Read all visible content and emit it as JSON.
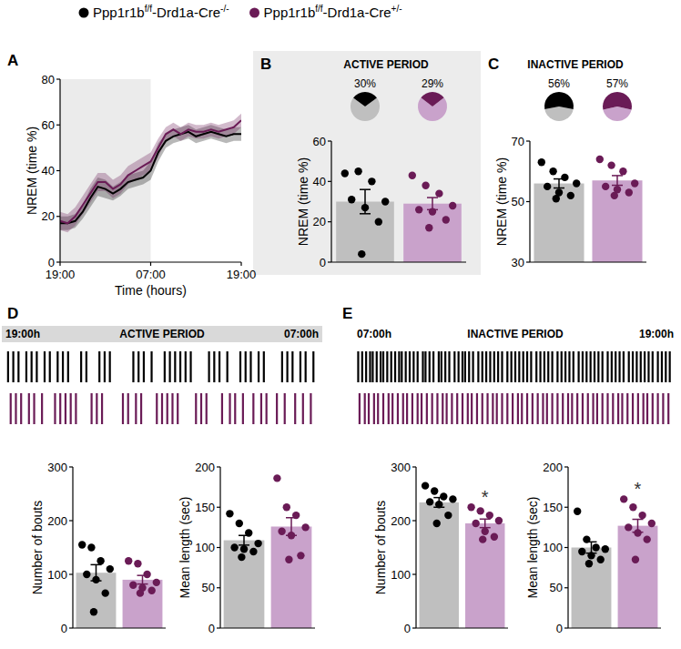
{
  "figure_legend": {
    "entries": [
      {
        "parts": [
          "Ppp1r1b",
          "f/f",
          "-Drd1a-Cre",
          "-/-"
        ],
        "color": "#000000"
      },
      {
        "parts": [
          "Ppp1r1b",
          "f/f",
          "-Drd1a-Cre",
          "+/-"
        ],
        "color": "#6a1b56"
      }
    ]
  },
  "chart_data": [
    {
      "type": "line",
      "panel": "A",
      "ylabel": "NREM (time %)",
      "xlabel": "Time (hours)",
      "x": [
        0,
        1,
        2,
        3,
        4,
        5,
        6,
        7,
        8,
        9,
        10,
        11,
        12,
        13,
        14,
        15,
        16,
        17,
        18,
        19,
        20,
        21,
        22,
        23,
        24
      ],
      "xlim": [
        0,
        24
      ],
      "xticks": [
        {
          "value": 0,
          "label": "19:00"
        },
        {
          "value": 12,
          "label": "07:00"
        },
        {
          "value": 24,
          "label": "19:00"
        }
      ],
      "ylim": [
        0,
        80
      ],
      "yticks": [
        0,
        20,
        40,
        60,
        80
      ],
      "shaded_x": [
        0,
        12
      ],
      "series": [
        {
          "color": "#000000",
          "values": [
            17,
            17,
            18,
            22,
            28,
            33,
            32,
            30,
            32,
            35,
            36,
            37,
            40,
            48,
            53,
            55,
            56,
            57,
            55,
            56,
            57,
            56,
            55,
            56,
            56
          ],
          "errors": [
            3,
            3,
            3,
            3,
            4,
            4,
            4,
            3,
            3,
            3,
            3,
            3,
            4,
            4,
            3,
            3,
            3,
            3,
            3,
            3,
            3,
            3,
            3,
            3,
            3
          ]
        },
        {
          "color": "#6a1b56",
          "values": [
            18,
            17,
            20,
            25,
            30,
            35,
            35,
            32,
            34,
            38,
            40,
            42,
            44,
            50,
            56,
            58,
            56,
            58,
            57,
            57,
            58,
            57,
            58,
            59,
            62
          ],
          "errors": [
            4,
            4,
            4,
            4,
            4,
            4,
            4,
            4,
            4,
            4,
            4,
            4,
            4,
            4,
            3,
            3,
            3,
            3,
            3,
            3,
            3,
            3,
            3,
            3,
            3
          ]
        }
      ]
    },
    {
      "type": "bar",
      "panel": "B",
      "title": "ACTIVE PERIOD",
      "ylabel": "NREM (time %)",
      "categories": [
        null,
        null
      ],
      "ylim": [
        0,
        60
      ],
      "yticks": [
        0,
        20,
        40,
        60
      ],
      "colors": [
        "#bfbfbf",
        "#c9a2cb"
      ],
      "values": [
        30,
        29
      ],
      "errors": [
        6,
        3
      ],
      "points": [
        {
          "color": "#000000",
          "values": [
            44,
            45,
            40,
            30,
            31,
            27,
            20,
            4
          ]
        },
        {
          "color": "#6a1b56",
          "values": [
            43,
            38,
            34,
            28,
            26,
            25,
            21,
            17
          ]
        }
      ],
      "pies": {
        "values": [
          30,
          29
        ],
        "value_labels": [
          "30%",
          "29%"
        ]
      }
    },
    {
      "type": "bar",
      "panel": "C",
      "title": "INACTIVE PERIOD",
      "ylabel": "NREM (time %)",
      "categories": [
        null,
        null
      ],
      "ylim": [
        30,
        70
      ],
      "yticks": [
        30,
        50,
        70
      ],
      "colors": [
        "#bfbfbf",
        "#c9a2cb"
      ],
      "values": [
        56,
        57
      ],
      "errors": [
        1.5,
        1.6
      ],
      "points": [
        {
          "color": "#000000",
          "values": [
            63,
            60,
            58,
            56,
            55,
            53,
            52,
            51
          ]
        },
        {
          "color": "#6a1b56",
          "values": [
            64,
            62,
            60,
            56,
            55,
            54,
            53,
            52
          ]
        }
      ],
      "pies": {
        "values": [
          56,
          57
        ],
        "value_labels": [
          "56%",
          "57%"
        ]
      }
    },
    {
      "type": "raster",
      "panel": "D",
      "title": "ACTIVE PERIOD",
      "start_label": "19:00h",
      "end_label": "07:00h",
      "xlim": [
        0,
        12
      ],
      "series": [
        {
          "color": "#000000",
          "values": [
            0.1,
            0.3,
            0.5,
            0.8,
            1.0,
            1.2,
            1.5,
            1.7,
            2.0,
            2.2,
            2.4,
            2.9,
            3.1,
            3.6,
            3.8,
            4.0,
            4.9,
            5.1,
            5.3,
            5.6,
            6.1,
            6.3,
            6.5,
            6.7,
            6.9,
            7.1,
            7.8,
            8.0,
            8.2,
            8.5,
            9.0,
            9.2,
            9.4,
            9.7,
            9.9,
            10.6,
            10.8,
            11.0,
            11.3,
            11.5,
            11.8
          ]
        },
        {
          "color": "#6a1b56",
          "values": [
            0.2,
            0.4,
            0.6,
            0.9,
            1.1,
            1.4,
            1.9,
            2.1,
            2.3,
            2.5,
            2.7,
            3.3,
            3.5,
            3.7,
            4.5,
            4.7,
            5.0,
            5.2,
            5.8,
            6.0,
            6.2,
            6.4,
            6.6,
            7.3,
            7.5,
            7.7,
            8.3,
            8.6,
            8.8,
            9.1,
            9.5,
            9.8,
            10.0,
            10.4,
            10.7,
            11.1,
            11.4,
            11.7
          ]
        }
      ]
    },
    {
      "type": "bar",
      "ylabel": "Number of bouts",
      "categories": [
        null,
        null
      ],
      "ylim": [
        0,
        300
      ],
      "yticks": [
        0,
        100,
        200,
        300
      ],
      "colors": [
        "#bfbfbf",
        "#c9a2cb"
      ],
      "values": [
        103,
        90
      ],
      "errors": [
        15,
        8
      ],
      "points": [
        {
          "color": "#000000",
          "values": [
            155,
            150,
            125,
            110,
            100,
            90,
            65,
            30
          ]
        },
        {
          "color": "#6a1b56",
          "values": [
            125,
            120,
            100,
            85,
            80,
            75,
            70,
            65
          ]
        }
      ]
    },
    {
      "type": "bar",
      "ylabel": "Mean length (sec)",
      "categories": [
        null,
        null
      ],
      "ylim": [
        0,
        200
      ],
      "yticks": [
        0,
        50,
        100,
        150,
        200
      ],
      "colors": [
        "#bfbfbf",
        "#c9a2cb"
      ],
      "values": [
        109,
        126
      ],
      "errors": [
        6,
        11
      ],
      "points": [
        {
          "color": "#000000",
          "values": [
            142,
            130,
            118,
            105,
            100,
            98,
            95,
            88
          ]
        },
        {
          "color": "#6a1b56",
          "values": [
            186,
            150,
            140,
            125,
            120,
            115,
            90,
            85
          ]
        }
      ]
    },
    {
      "type": "raster",
      "panel": "E",
      "title": "INACTIVE PERIOD",
      "start_label": "07:00h",
      "end_label": "19:00h",
      "xlim": [
        0,
        12
      ],
      "series": [
        {
          "color": "#000000",
          "values": [
            0.05,
            0.2,
            0.35,
            0.5,
            0.6,
            0.75,
            0.9,
            1.0,
            1.15,
            1.3,
            1.45,
            1.6,
            1.7,
            1.85,
            2.0,
            2.15,
            2.3,
            2.5,
            2.6,
            2.75,
            2.9,
            3.1,
            3.2,
            3.35,
            3.5,
            3.7,
            3.85,
            4.0,
            4.1,
            4.25,
            4.4,
            4.6,
            4.75,
            4.9,
            5.05,
            5.2,
            5.35,
            5.5,
            5.7,
            5.85,
            6.0,
            6.15,
            6.3,
            6.45,
            6.6,
            6.8,
            6.95,
            7.1,
            7.25,
            7.4,
            7.6,
            7.75,
            7.9,
            8.05,
            8.2,
            8.4,
            8.55,
            8.7,
            8.85,
            9.0,
            9.15,
            9.3,
            9.5,
            9.65,
            9.8,
            9.95,
            10.1,
            10.3,
            10.45,
            10.6,
            10.75,
            10.9,
            11.05,
            11.2,
            11.4,
            11.55,
            11.7,
            11.85
          ]
        },
        {
          "color": "#6a1b56",
          "values": [
            0.1,
            0.3,
            0.45,
            0.65,
            0.8,
            1.0,
            1.2,
            1.35,
            1.55,
            1.75,
            1.9,
            2.1,
            2.3,
            2.45,
            2.65,
            2.85,
            3.05,
            3.25,
            3.4,
            3.6,
            3.8,
            4.0,
            4.2,
            4.35,
            4.55,
            4.75,
            4.95,
            5.15,
            5.3,
            5.5,
            5.7,
            5.9,
            6.1,
            6.25,
            6.45,
            6.65,
            6.85,
            7.05,
            7.2,
            7.4,
            7.6,
            7.8,
            8.0,
            8.15,
            8.35,
            8.55,
            8.75,
            8.95,
            9.1,
            9.3,
            9.5,
            9.7,
            9.9,
            10.05,
            10.25,
            10.45,
            10.65,
            10.85,
            11.0,
            11.2,
            11.4,
            11.6,
            11.8
          ]
        }
      ]
    },
    {
      "type": "bar",
      "ylabel": "Number of bouts",
      "categories": [
        null,
        null
      ],
      "ylim": [
        0,
        300
      ],
      "yticks": [
        0,
        100,
        200,
        300
      ],
      "colors": [
        "#bfbfbf",
        "#c9a2cb"
      ],
      "values": [
        234,
        195
      ],
      "errors": [
        9,
        8
      ],
      "points": [
        {
          "color": "#000000",
          "values": [
            265,
            255,
            245,
            240,
            235,
            230,
            210,
            195
          ]
        },
        {
          "color": "#6a1b56",
          "values": [
            225,
            218,
            210,
            200,
            195,
            180,
            170,
            165
          ]
        }
      ],
      "annotations": [
        {
          "text": "*",
          "index": 1
        }
      ]
    },
    {
      "type": "bar",
      "ylabel": "Mean length (sec)",
      "categories": [
        null,
        null
      ],
      "ylim": [
        0,
        200
      ],
      "yticks": [
        0,
        50,
        100,
        150,
        200
      ],
      "colors": [
        "#bfbfbf",
        "#c9a2cb"
      ],
      "values": [
        100,
        127
      ],
      "errors": [
        7,
        8
      ],
      "points": [
        {
          "color": "#000000",
          "values": [
            145,
            110,
            100,
            98,
            95,
            90,
            85,
            80
          ]
        },
        {
          "color": "#6a1b56",
          "values": [
            160,
            150,
            140,
            130,
            125,
            118,
            110,
            85
          ]
        }
      ],
      "annotations": [
        {
          "text": "*",
          "index": 1
        }
      ]
    }
  ]
}
